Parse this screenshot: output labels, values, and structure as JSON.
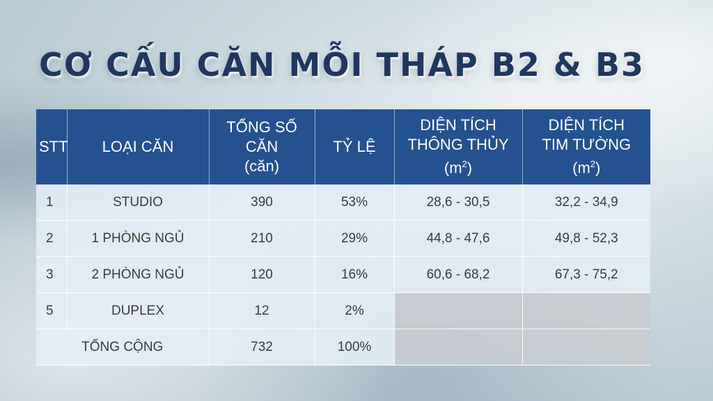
{
  "title": "CƠ CẤU CĂN MỖI THÁP B2 & B3",
  "headers": {
    "stt": "STT",
    "loai_can": "LOẠI CĂN",
    "tong_so_can_1": "TỔNG SỐ CĂN",
    "tong_so_can_2": "(căn)",
    "ty_le": "TỶ LỆ",
    "dt_thong_thuy_1": "DIỆN TÍCH",
    "dt_thong_thuy_2": "THÔNG THỦY",
    "dt_thong_thuy_3": "(m",
    "dt_tim_tuong_1": "DIỆN TÍCH",
    "dt_tim_tuong_2": "TIM TƯỜNG",
    "dt_tim_tuong_3": "(m",
    "unit_sup": "2",
    "unit_close": ")"
  },
  "rows": [
    {
      "stt": "1",
      "loai": "STUDIO",
      "so_can": "390",
      "ty_le": "53%",
      "thong_thuy": "28,6 - 30,5",
      "tim_tuong": "32,2 - 34,9"
    },
    {
      "stt": "2",
      "loai": "1 PHÒNG NGỦ",
      "so_can": "210",
      "ty_le": "29%",
      "thong_thuy": "44,8 - 47,6",
      "tim_tuong": "49,8 - 52,3"
    },
    {
      "stt": "3",
      "loai": "2 PHÒNG NGỦ",
      "so_can": "120",
      "ty_le": "16%",
      "thong_thuy": "60,6 - 68,2",
      "tim_tuong": "67,3 - 75,2"
    },
    {
      "stt": "5",
      "loai": "DUPLEX",
      "so_can": "12",
      "ty_le": "2%",
      "thong_thuy": "",
      "tim_tuong": ""
    }
  ],
  "total": {
    "label": "TỔNG CỘNG",
    "so_can": "732",
    "ty_le": "100%"
  }
}
